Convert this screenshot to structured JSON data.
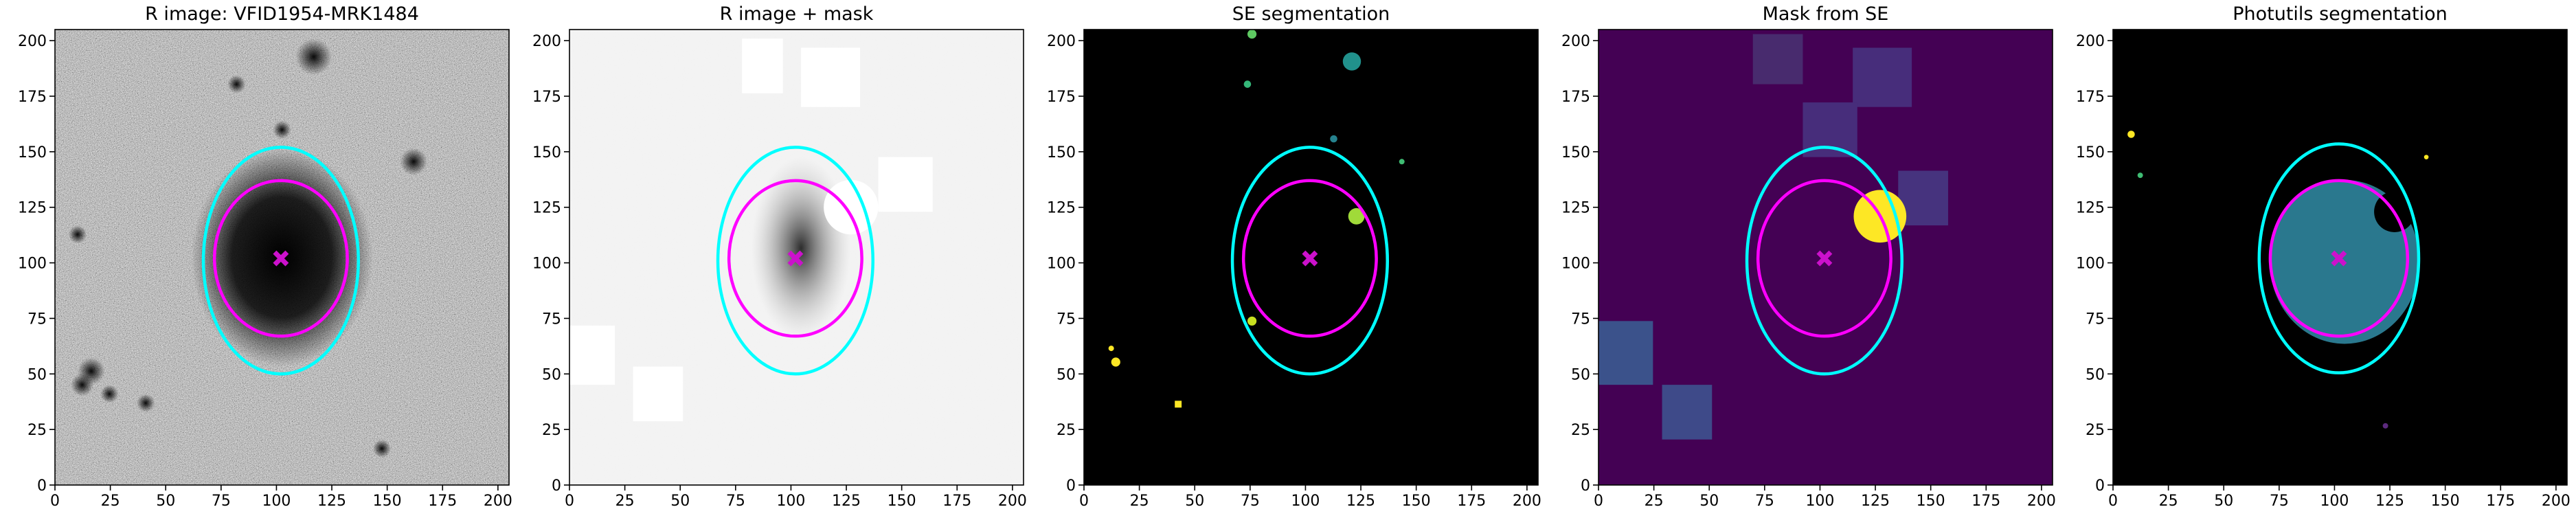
{
  "chart_data": [
    {
      "type": "image",
      "title": "R image: VFID1954-MRK1484",
      "xlim": [
        0,
        205
      ],
      "ylim": [
        0,
        205
      ],
      "xticks": [
        0,
        25,
        50,
        75,
        100,
        125,
        150,
        175,
        200
      ],
      "yticks": [
        0,
        25,
        50,
        75,
        100,
        125,
        150,
        175,
        200
      ],
      "ellipses": [
        {
          "center": [
            102,
            101
          ],
          "width": 70,
          "height": 102,
          "color": "#00ffff"
        },
        {
          "center": [
            102,
            102
          ],
          "width": 60,
          "height": 70,
          "color": "#ff00ff"
        }
      ],
      "marker": {
        "x": 102,
        "y": 102,
        "color": "#cc11cc"
      }
    },
    {
      "type": "image",
      "title": "R image + mask",
      "xlim": [
        0,
        205
      ],
      "ylim": [
        0,
        205
      ],
      "xticks": [
        0,
        25,
        50,
        75,
        100,
        125,
        150,
        175,
        200
      ],
      "yticks": [
        0,
        25,
        50,
        75,
        100,
        125,
        150,
        175,
        200
      ],
      "ellipses": [
        {
          "center": [
            102,
            101
          ],
          "width": 70,
          "height": 102,
          "color": "#00ffff"
        },
        {
          "center": [
            102,
            102
          ],
          "width": 60,
          "height": 70,
          "color": "#ff00ff"
        }
      ],
      "marker": {
        "x": 102,
        "y": 102,
        "color": "#cc11cc"
      }
    },
    {
      "type": "image",
      "title": "SE segmentation",
      "xlim": [
        0,
        205
      ],
      "ylim": [
        0,
        205
      ],
      "xticks": [
        0,
        25,
        50,
        75,
        100,
        125,
        150,
        175,
        200
      ],
      "yticks": [
        0,
        25,
        50,
        75,
        100,
        125,
        150,
        175,
        200
      ],
      "ellipses": [
        {
          "center": [
            102,
            101
          ],
          "width": 70,
          "height": 102,
          "color": "#00ffff"
        },
        {
          "center": [
            102,
            102
          ],
          "width": 60,
          "height": 70,
          "color": "#ff00ff"
        }
      ],
      "marker": {
        "x": 102,
        "y": 102,
        "color": "#cc11cc"
      }
    },
    {
      "type": "image",
      "title": "Mask from SE",
      "xlim": [
        0,
        205
      ],
      "ylim": [
        0,
        205
      ],
      "xticks": [
        0,
        25,
        50,
        75,
        100,
        125,
        150,
        175,
        200
      ],
      "yticks": [
        0,
        25,
        50,
        75,
        100,
        125,
        150,
        175,
        200
      ],
      "ellipses": [
        {
          "center": [
            102,
            101
          ],
          "width": 70,
          "height": 102,
          "color": "#00ffff"
        },
        {
          "center": [
            102,
            102
          ],
          "width": 60,
          "height": 70,
          "color": "#ff00ff"
        }
      ],
      "marker": {
        "x": 102,
        "y": 102,
        "color": "#cc11cc"
      }
    },
    {
      "type": "image",
      "title": "Photutils segmentation",
      "xlim": [
        0,
        205
      ],
      "ylim": [
        0,
        205
      ],
      "xticks": [
        0,
        25,
        50,
        75,
        100,
        125,
        150,
        175,
        200
      ],
      "yticks": [
        0,
        25,
        50,
        75,
        100,
        125,
        150,
        175,
        200
      ],
      "ellipses": [
        {
          "center": [
            102,
            102
          ],
          "width": 72,
          "height": 103,
          "color": "#00ffff"
        },
        {
          "center": [
            102,
            102
          ],
          "width": 62,
          "height": 70,
          "color": "#ff00ff"
        }
      ],
      "marker": {
        "x": 102,
        "y": 102,
        "color": "#cc11cc"
      }
    }
  ]
}
